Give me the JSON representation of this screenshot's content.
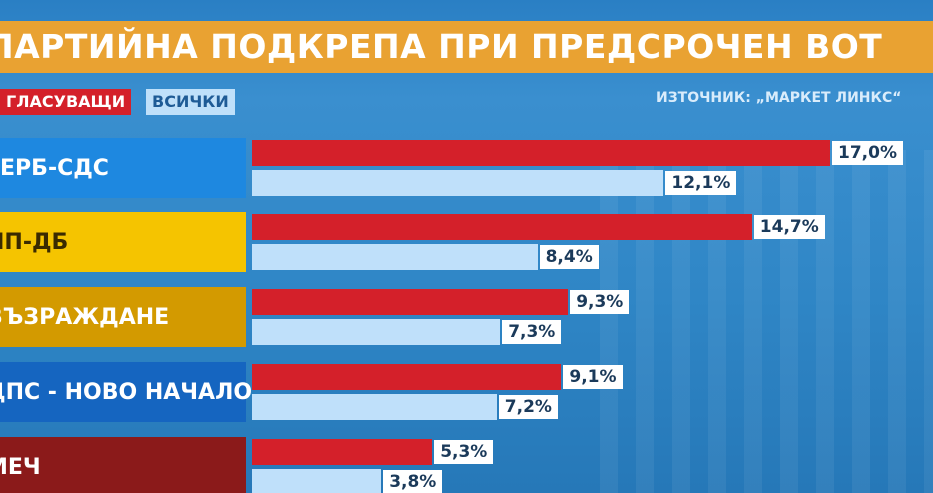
{
  "title": "ПАРТИЙНА ПОДКРЕПА ПРИ ПРЕДСРОЧЕН ВОТ",
  "source": "ИЗТОЧНИК: „МАРКЕТ ЛИНКС“",
  "chart_data": {
    "type": "bar",
    "title": "ПАРТИЙНА ПОДКРЕПА ПРИ ПРЕДСРОЧЕН ВОТ",
    "categories": [
      "ГЕРБ-СДС",
      "ПП-ДБ",
      "ВЪЗРАЖДАНЕ",
      "ДПС - НОВО НАЧАЛО",
      "МЕЧ"
    ],
    "category_colors": [
      "#1e88e0",
      "#f5c400",
      "#d39a00",
      "#1565c0",
      "#8b1a1a"
    ],
    "series": [
      {
        "name": "ГЛАСУВАЩИ",
        "color": "#d4202a",
        "values": [
          17.0,
          14.7,
          9.3,
          9.1,
          5.3
        ],
        "labels": [
          "17,0%",
          "14,7%",
          "9,3%",
          "9,1%",
          "5,3%"
        ]
      },
      {
        "name": "ВСИЧКИ",
        "color": "#bfe0fa",
        "values": [
          12.1,
          8.4,
          7.3,
          7.2,
          3.8
        ],
        "labels": [
          "12,1%",
          "8,4%",
          "7,3%",
          "7,2%",
          "3,8%"
        ]
      }
    ],
    "orientation": "horizontal",
    "unit": "%",
    "legend": "top-left"
  }
}
